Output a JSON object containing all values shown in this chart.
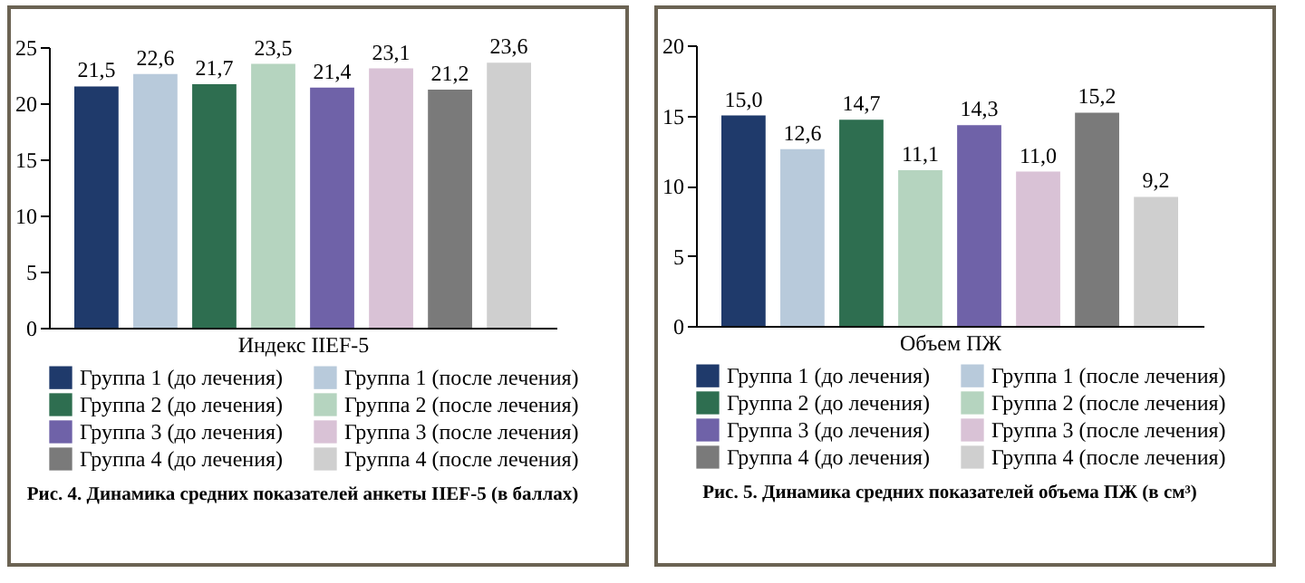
{
  "chart_data": [
    {
      "type": "bar",
      "title": "Рис. 4. Динамика средних показателей анкеты IIEF-5 (в баллах)",
      "xlabel": "Индекс IIEF-5",
      "categories": [
        null
      ],
      "ylim": [
        0,
        25
      ],
      "yticks": [
        0,
        5,
        10,
        15,
        20,
        25
      ],
      "legend": "bottom",
      "series": [
        {
          "name": "Группа 1 (до лечения)",
          "color": "#1f3a6b",
          "values": [
            21.5
          ],
          "value_labels": [
            "21,5"
          ]
        },
        {
          "name": "Группа 1 (после лечения)",
          "color": "#b8cadb",
          "values": [
            22.6
          ],
          "value_labels": [
            "22,6"
          ]
        },
        {
          "name": "Группа 2 (до лечения)",
          "color": "#2e6e50",
          "values": [
            21.7
          ],
          "value_labels": [
            "21,7"
          ]
        },
        {
          "name": "Группа 2 (после лечения)",
          "color": "#b5d4bf",
          "values": [
            23.5
          ],
          "value_labels": [
            "23,5"
          ]
        },
        {
          "name": "Группа 3 (до лечения)",
          "color": "#6f62a8",
          "values": [
            21.4
          ],
          "value_labels": [
            "21,4"
          ]
        },
        {
          "name": "Группа 3 (после лечения)",
          "color": "#d9c2d6",
          "values": [
            23.1
          ],
          "value_labels": [
            "23,1"
          ]
        },
        {
          "name": "Группа 4 (до лечения)",
          "color": "#7a7a7a",
          "values": [
            21.2
          ],
          "value_labels": [
            "21,2"
          ]
        },
        {
          "name": "Группа 4 (после лечения)",
          "color": "#cfcfcf",
          "values": [
            23.6
          ],
          "value_labels": [
            "23,6"
          ]
        }
      ]
    },
    {
      "type": "bar",
      "title": "Рис. 5. Динамика средних показателей объема ПЖ (в см³)",
      "xlabel": "Объем ПЖ",
      "categories": [
        null
      ],
      "ylim": [
        0,
        20
      ],
      "yticks": [
        0,
        5,
        10,
        15,
        20
      ],
      "legend": "bottom",
      "series": [
        {
          "name": "Группа 1 (до лечения)",
          "color": "#1f3a6b",
          "values": [
            15.0
          ],
          "value_labels": [
            "15,0"
          ]
        },
        {
          "name": "Группа 1 (после лечения)",
          "color": "#b8cadb",
          "values": [
            12.6
          ],
          "value_labels": [
            "12,6"
          ]
        },
        {
          "name": "Группа 2 (до лечения)",
          "color": "#2e6e50",
          "values": [
            14.7
          ],
          "value_labels": [
            "14,7"
          ]
        },
        {
          "name": "Группа 2 (после лечения)",
          "color": "#b5d4bf",
          "values": [
            11.1
          ],
          "value_labels": [
            "11,1"
          ]
        },
        {
          "name": "Группа 3 (до лечения)",
          "color": "#6f62a8",
          "values": [
            14.3
          ],
          "value_labels": [
            "14,3"
          ]
        },
        {
          "name": "Группа 3 (после лечения)",
          "color": "#d9c2d6",
          "values": [
            11.0
          ],
          "value_labels": [
            "11,0"
          ]
        },
        {
          "name": "Группа 4 (до лечения)",
          "color": "#7a7a7a",
          "values": [
            15.2
          ],
          "value_labels": [
            "15,2"
          ]
        },
        {
          "name": "Группа 4 (после лечения)",
          "color": "#cfcfcf",
          "values": [
            9.2
          ],
          "value_labels": [
            "9,2"
          ]
        }
      ]
    }
  ]
}
